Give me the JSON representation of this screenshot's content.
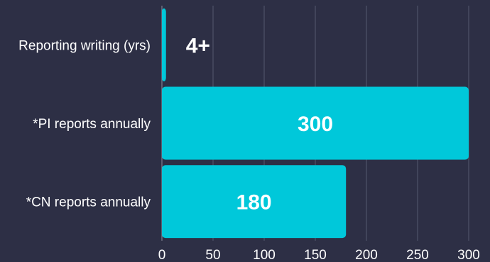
{
  "chart_data": {
    "type": "bar",
    "orientation": "horizontal",
    "categories": [
      "Reporting writing (yrs)",
      "*PI reports annually",
      "*CN reports annually"
    ],
    "values": [
      4,
      300,
      180
    ],
    "data_labels": [
      "4+",
      "300",
      "180"
    ],
    "xlim": [
      0,
      300
    ],
    "xticks": [
      0,
      50,
      100,
      150,
      200,
      250,
      300
    ],
    "title": "",
    "xlabel": "",
    "ylabel": "",
    "grid": true,
    "legend": "none",
    "colors": {
      "bar": "#00c8da",
      "background": "#2d2f45",
      "grid": "#55586e",
      "label_on_bar": "#ffffff",
      "label_outside": "#ffffff"
    }
  }
}
